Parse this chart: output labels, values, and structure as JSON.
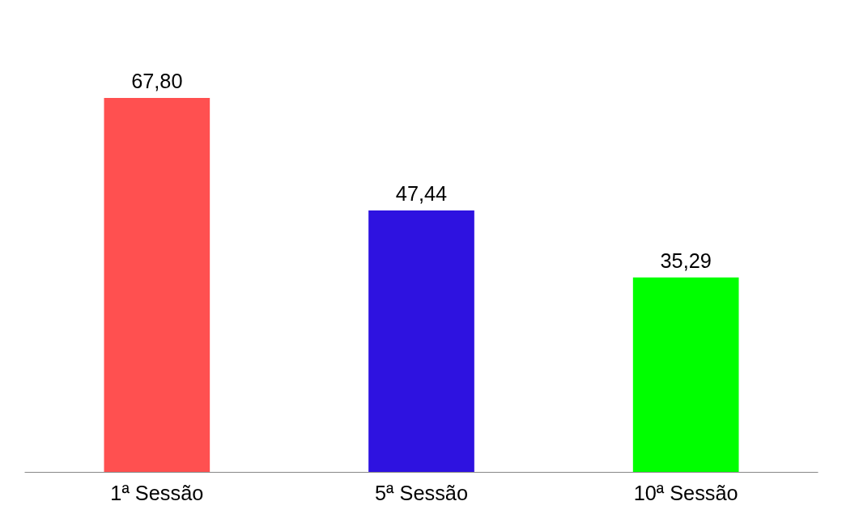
{
  "chart_data": {
    "type": "bar",
    "categories": [
      "1ª Sessão",
      "5ª Sessão",
      "10ª Sessão"
    ],
    "values": [
      67.8,
      47.44,
      35.29
    ],
    "colors": [
      "#ff5050",
      "#2e12e0",
      "#00ff00"
    ],
    "value_labels": [
      "67,80",
      "47,44",
      "35,29"
    ],
    "grid": false
  }
}
